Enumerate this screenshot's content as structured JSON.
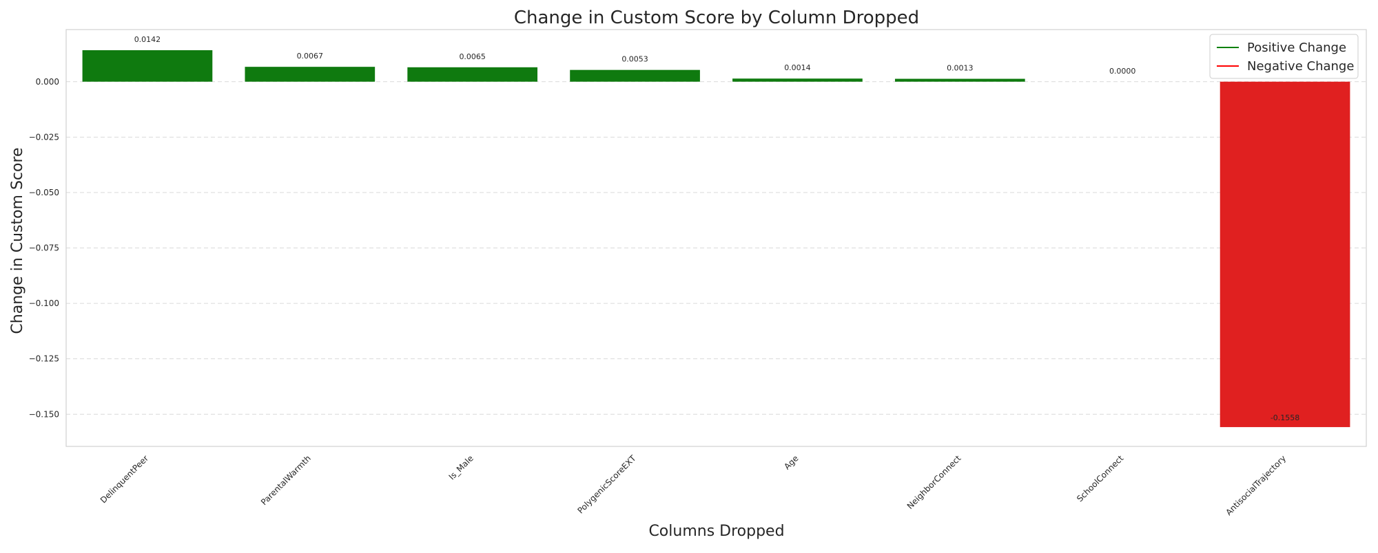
{
  "chart_data": {
    "type": "bar",
    "title": "Change in Custom Score by Column Dropped",
    "xlabel": "Columns Dropped",
    "ylabel": "Change in Custom Score",
    "categories": [
      "DelinquentPeer",
      "ParentalWarmth",
      "Is_Male",
      "PolygenicScoreEXT",
      "Age",
      "NeighborConnect",
      "SchoolConnect",
      "AntisocialTrajectory"
    ],
    "values": [
      0.0142,
      0.0067,
      0.0065,
      0.0053,
      0.0014,
      0.0013,
      0.0,
      -0.1558
    ],
    "value_labels": [
      "0.0142",
      "0.0067",
      "0.0065",
      "0.0053",
      "0.0014",
      "0.0013",
      "0.0000",
      "-0.1558"
    ],
    "ylim": [
      -0.1645,
      0.0235
    ],
    "yticks": [
      0.0,
      -0.025,
      -0.05,
      -0.075,
      -0.1,
      -0.125,
      -0.15
    ],
    "ytick_labels": [
      "0.000",
      "−0.025",
      "−0.050",
      "−0.075",
      "−0.100",
      "−0.125",
      "−0.150"
    ],
    "grid": "horizontal dashed",
    "legend": {
      "placement": "top-right",
      "entries": [
        {
          "label": "Positive Change",
          "color": "#008000"
        },
        {
          "label": "Negative Change",
          "color": "#ff0000"
        }
      ]
    },
    "colors": {
      "positive_bar": "#0f7a0f",
      "negative_bar": "#e02020"
    }
  }
}
